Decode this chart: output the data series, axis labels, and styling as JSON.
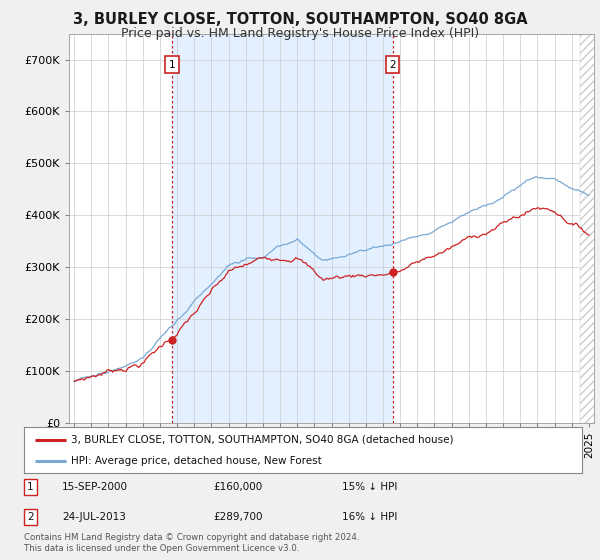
{
  "title": "3, BURLEY CLOSE, TOTTON, SOUTHAMPTON, SO40 8GA",
  "subtitle": "Price paid vs. HM Land Registry's House Price Index (HPI)",
  "ylim": [
    0,
    750000
  ],
  "yticks": [
    0,
    100000,
    200000,
    300000,
    400000,
    500000,
    600000,
    700000
  ],
  "ytick_labels": [
    "£0",
    "£100K",
    "£200K",
    "£300K",
    "£400K",
    "£500K",
    "£600K",
    "£700K"
  ],
  "xlim_start": 1994.7,
  "xlim_end": 2025.3,
  "hpi_color": "#7aa8d4",
  "price_color": "#cc2222",
  "marker1_date": 2000.71,
  "marker1_price": 160000,
  "marker2_date": 2013.56,
  "marker2_price": 289700,
  "vline1_x": 2000.71,
  "vline2_x": 2013.56,
  "shade_color": "#ddeeff",
  "hatch_start": 2024.5,
  "legend_label_price": "3, BURLEY CLOSE, TOTTON, SOUTHAMPTON, SO40 8GA (detached house)",
  "legend_label_hpi": "HPI: Average price, detached house, New Forest",
  "footer": "Contains HM Land Registry data © Crown copyright and database right 2024.\nThis data is licensed under the Open Government Licence v3.0.",
  "background_color": "#f0f0f0",
  "plot_bg_color": "#ffffff",
  "grid_color": "#cccccc",
  "title_fontsize": 10.5,
  "subtitle_fontsize": 9,
  "tick_fontsize": 8
}
